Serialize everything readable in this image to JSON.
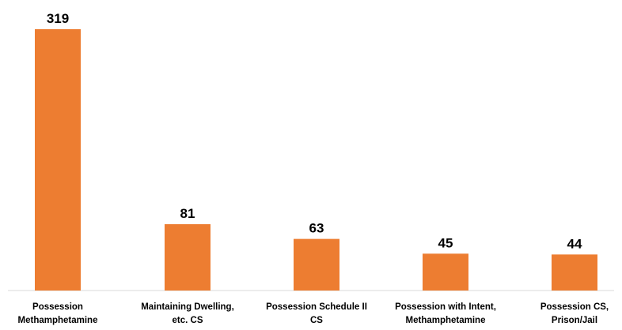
{
  "chart_data": {
    "type": "bar",
    "categories": [
      [
        "Possession",
        "Methamphetamine"
      ],
      [
        "Maintaining Dwelling,",
        "etc. CS"
      ],
      [
        "Possession Schedule II",
        "CS"
      ],
      [
        "Possession with Intent,",
        "Methamphetamine"
      ],
      [
        "Possession CS,",
        "Prison/Jail"
      ]
    ],
    "values": [
      319,
      81,
      63,
      45,
      44
    ],
    "data_labels": [
      "319",
      "81",
      "63",
      "45",
      "44"
    ],
    "title": "",
    "xlabel": "",
    "ylabel": "",
    "ylim": [
      0,
      319
    ],
    "grid": false,
    "legend": "none",
    "bar_color": "#ED7D31",
    "axis_color": "#D9D9D9"
  }
}
